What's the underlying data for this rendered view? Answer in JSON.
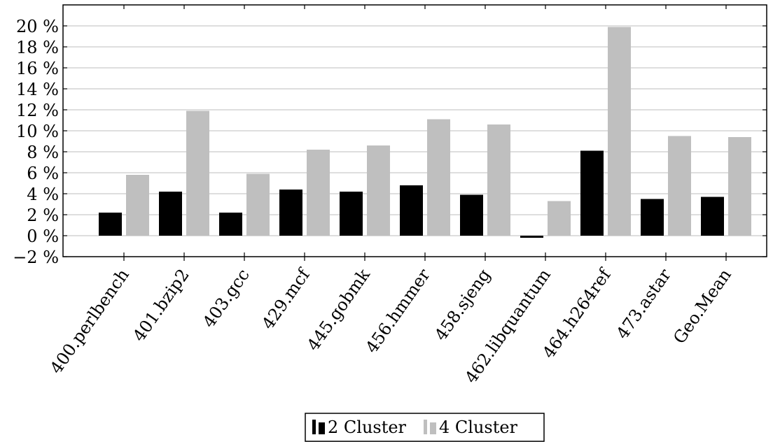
{
  "chart_data": {
    "type": "bar",
    "categories": [
      "400.perlbench",
      "401.bzip2",
      "403.gcc",
      "429.mcf",
      "445.gobmk",
      "456.hmmer",
      "458.sjeng",
      "462.libquantum",
      "464.h264ref",
      "473.astar",
      "Geo.Mean"
    ],
    "series": [
      {
        "name": "2 Cluster",
        "color": "#000000",
        "values": [
          2.2,
          4.2,
          2.2,
          4.4,
          4.2,
          4.8,
          3.9,
          -0.2,
          8.1,
          3.5,
          3.7
        ]
      },
      {
        "name": "4 Cluster",
        "color": "#bfbfbf",
        "values": [
          5.8,
          11.9,
          5.9,
          8.2,
          8.6,
          11.1,
          10.6,
          3.3,
          19.9,
          9.5,
          9.4
        ]
      }
    ],
    "y_ticks": [
      "−2 %",
      "0 %",
      "2 %",
      "4 %",
      "6 %",
      "8 %",
      "10 %",
      "12 %",
      "14 %",
      "16 %",
      "18 %",
      "20 %"
    ],
    "y_tick_values": [
      -2,
      0,
      2,
      4,
      6,
      8,
      10,
      12,
      14,
      16,
      18,
      20
    ],
    "ylim": [
      -2,
      22
    ],
    "grid": "horizontal",
    "legend_position": "bottom-center"
  }
}
